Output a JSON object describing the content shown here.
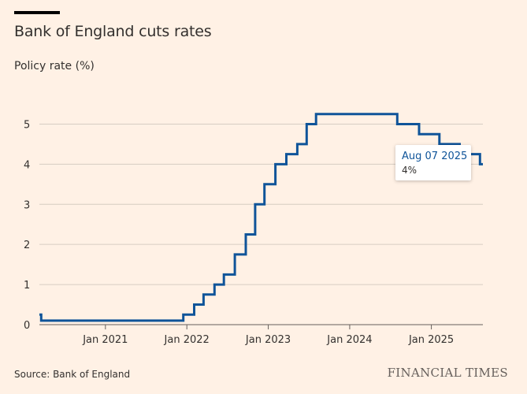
{
  "header": {
    "title": "Bank of England cuts rates",
    "subtitle": "Policy rate (%)"
  },
  "footer": {
    "source": "Source: Bank of England",
    "brand": "FINANCIAL TIMES"
  },
  "tooltip": {
    "date": "Aug 07 2025",
    "value": "4%"
  },
  "colors": {
    "line": "#0f5499",
    "grid": "#d6ccc2",
    "background": "#fff1e5"
  },
  "chart_data": {
    "type": "line",
    "title": "Bank of England cuts rates",
    "ylabel": "Policy rate (%)",
    "xlabel": "",
    "step": true,
    "ylim": [
      0,
      5.5
    ],
    "yticks": [
      "0",
      "1",
      "2",
      "3",
      "4",
      "5"
    ],
    "xticks": [
      "Jan 2021",
      "Jan 2022",
      "Jan 2023",
      "Jan 2024",
      "Jan 2025"
    ],
    "xrange": [
      "2020-03-11",
      "2025-08-20"
    ],
    "series": [
      {
        "name": "Policy rate",
        "points": [
          [
            "2020-03-11",
            0.25
          ],
          [
            "2020-03-19",
            0.1
          ],
          [
            "2021-12-16",
            0.25
          ],
          [
            "2022-02-03",
            0.5
          ],
          [
            "2022-03-17",
            0.75
          ],
          [
            "2022-05-05",
            1.0
          ],
          [
            "2022-06-16",
            1.25
          ],
          [
            "2022-08-04",
            1.75
          ],
          [
            "2022-09-22",
            2.25
          ],
          [
            "2022-11-03",
            3.0
          ],
          [
            "2022-12-15",
            3.5
          ],
          [
            "2023-02-02",
            4.0
          ],
          [
            "2023-03-23",
            4.25
          ],
          [
            "2023-05-11",
            4.5
          ],
          [
            "2023-06-22",
            5.0
          ],
          [
            "2023-08-03",
            5.25
          ],
          [
            "2024-08-01",
            5.0
          ],
          [
            "2024-11-07",
            4.75
          ],
          [
            "2025-02-06",
            4.5
          ],
          [
            "2025-05-08",
            4.25
          ],
          [
            "2025-08-07",
            4.0
          ]
        ]
      }
    ]
  }
}
